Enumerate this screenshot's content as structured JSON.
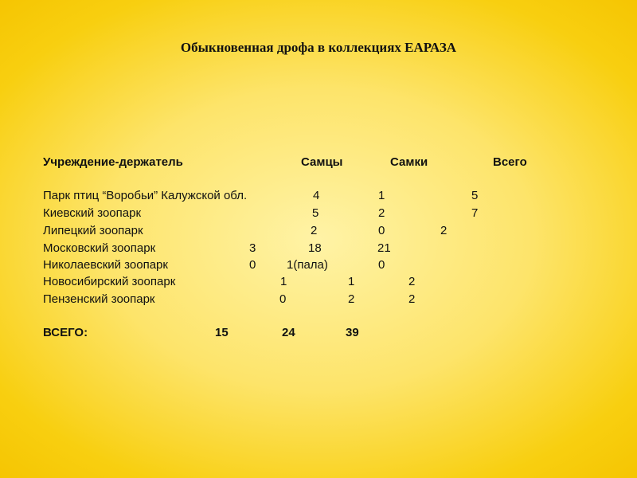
{
  "title": "Обыкновенная дрофа в коллекциях ЕАРАЗА",
  "header": {
    "institution": "Учреждение-держатель",
    "males": "Самцы",
    "females": "Самки",
    "total": "Всего"
  },
  "rows": [
    {
      "name": "Парк птиц “Воробьи” Калужской обл.",
      "values": [
        "4",
        "1",
        "5"
      ]
    },
    {
      "name": "Киевский зоопарк",
      "values": [
        "5",
        "2",
        "7"
      ]
    },
    {
      "name": "Липецкий зоопарк",
      "values": [
        "2",
        "0",
        "2"
      ]
    },
    {
      "name": "Московский зоопарк",
      "values": [
        "3",
        "18",
        "21"
      ]
    },
    {
      "name": "Николаевский зоопарк",
      "values": [
        "0",
        "1(пала)",
        "0"
      ]
    },
    {
      "name": "Новосибирский зоопарк",
      "values": [
        "1",
        "1",
        "2"
      ]
    },
    {
      "name": "Пензенский зоопарк",
      "values": [
        "0",
        "2",
        "2"
      ]
    }
  ],
  "totals": {
    "label": "ВСЕГО:",
    "values": [
      "15",
      "24",
      "39"
    ]
  }
}
